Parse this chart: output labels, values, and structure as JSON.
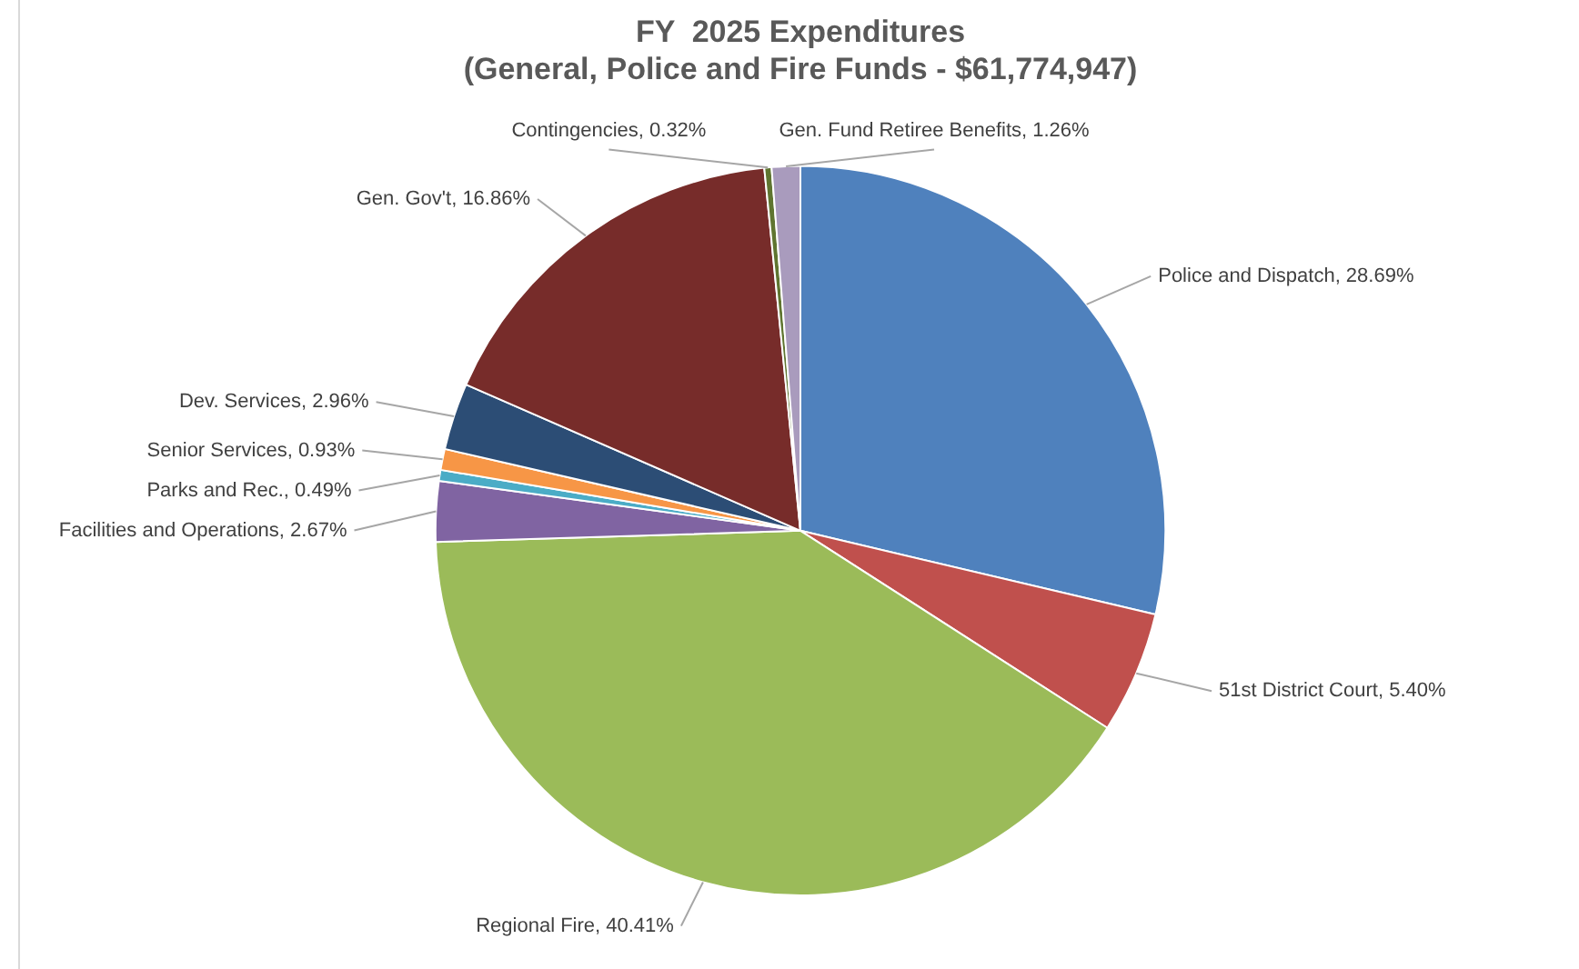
{
  "chart_data": {
    "type": "pie",
    "title": "FY  2025 Expenditures\n(General, Police and Fire Funds - $61,774,947)",
    "categories": [
      "Police and Dispatch",
      "51st District Court",
      "Regional Fire",
      "Facilities and Operations",
      "Parks and Rec.",
      "Senior Services",
      "Dev. Services",
      "Gen. Gov't",
      "Contingencies",
      "Gen. Fund Retiree Benefits"
    ],
    "values": [
      28.69,
      5.4,
      40.41,
      2.67,
      0.49,
      0.93,
      2.96,
      16.86,
      0.32,
      1.26
    ],
    "value_labels": [
      "28.69%",
      "5.40%",
      "40.41%",
      "2.67%",
      "0.49%",
      "0.93%",
      "2.96%",
      "16.86%",
      "0.32%",
      "1.26%"
    ],
    "colors": [
      "#4f81bd",
      "#c0504d",
      "#9bbb59",
      "#8064a2",
      "#4bacc6",
      "#f79646",
      "#2c4d75",
      "#772c2a",
      "#5f7530",
      "#a99bbd"
    ]
  }
}
